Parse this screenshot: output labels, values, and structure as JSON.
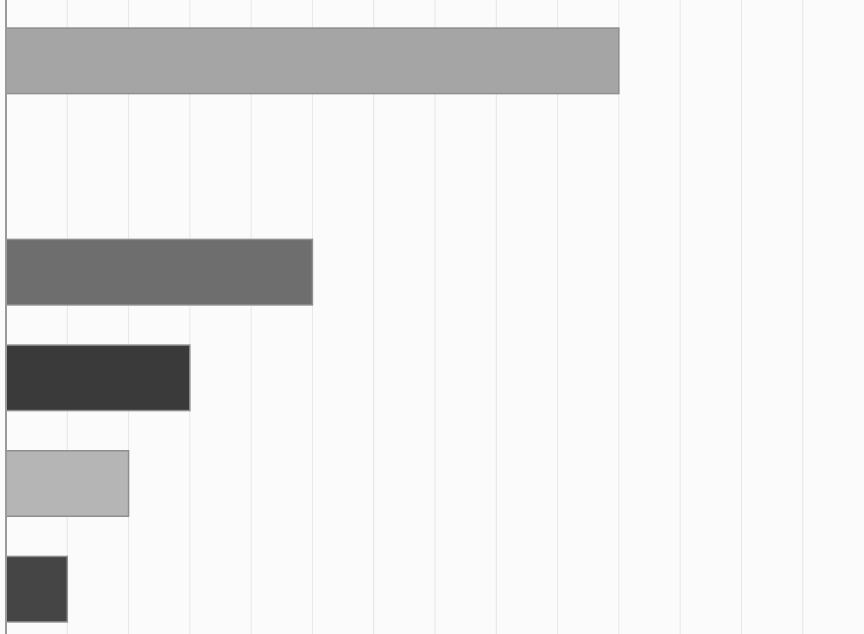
{
  "chart_data": {
    "type": "bar",
    "orientation": "horizontal",
    "title": "",
    "xlabel": "",
    "ylabel": "",
    "values": [
      100,
      0,
      50,
      30,
      20,
      10
    ],
    "xlim": [
      0,
      140
    ],
    "grid": true,
    "legend": "none",
    "colors": [
      "#a5a5a5",
      "#ffffff",
      "#6e6e6e",
      "#3a3a3a",
      "#b5b5b5",
      "#454545"
    ]
  }
}
